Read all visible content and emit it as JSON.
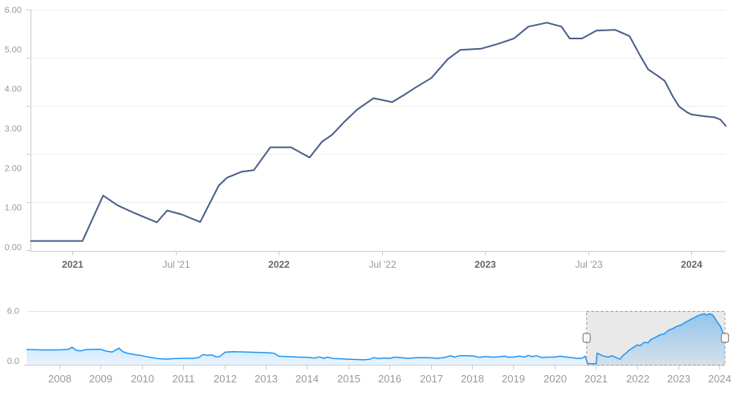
{
  "page": {
    "background": "#ffffff"
  },
  "colors": {
    "main_line": "#4a6088",
    "nav_line": "#2196f3",
    "nav_fill": "#2196f3",
    "gridline": "#ededed",
    "nav_gridline": "#e6e6e6",
    "axis_line": "#cccccc",
    "label_gray": "#999999",
    "label_dark": "#666666",
    "selection_mask": "#000000",
    "selection_mask_opacity": "0.085",
    "selection_border": "#999999",
    "handle_fill": "#f7f7f7",
    "handle_stroke": "#888888"
  },
  "chart_data": [
    {
      "id": "main-chart",
      "type": "line",
      "title": "",
      "xlabel": "",
      "ylabel": "",
      "x_range": [
        2020.798,
        2024.166
      ],
      "y_range": [
        0,
        6
      ],
      "grid": true,
      "legend": false,
      "y_axis_labels": [
        {
          "value": 6,
          "label": "6.00"
        },
        {
          "value": 5,
          "label": "5.00"
        },
        {
          "value": 4,
          "label": "4.00"
        },
        {
          "value": 3,
          "label": "3.00"
        },
        {
          "value": 2,
          "label": "2.00"
        },
        {
          "value": 1,
          "label": "1.00"
        },
        {
          "value": 0,
          "label": "0.00"
        }
      ],
      "x_axis_ticks": [
        {
          "pos": 2021.0,
          "label": "2021",
          "bold": true
        },
        {
          "pos": 2021.5,
          "label": "Jul '21",
          "bold": false
        },
        {
          "pos": 2022.0,
          "label": "2022",
          "bold": true
        },
        {
          "pos": 2022.5,
          "label": "Jul '22",
          "bold": false
        },
        {
          "pos": 2023.0,
          "label": "2023",
          "bold": true
        },
        {
          "pos": 2023.5,
          "label": "Jul '23",
          "bold": false
        },
        {
          "pos": 2024.0,
          "label": "2024",
          "bold": true
        }
      ],
      "points": [
        [
          2020.8,
          0.15
        ],
        [
          2021.05,
          0.15
        ],
        [
          2021.15,
          1.3
        ],
        [
          2021.22,
          1.05
        ],
        [
          2021.3,
          0.86
        ],
        [
          2021.41,
          0.62
        ],
        [
          2021.46,
          0.92
        ],
        [
          2021.53,
          0.82
        ],
        [
          2021.62,
          0.63
        ],
        [
          2021.71,
          1.55
        ],
        [
          2021.75,
          1.75
        ],
        [
          2021.82,
          1.9
        ],
        [
          2021.88,
          1.94
        ],
        [
          2021.96,
          2.52
        ],
        [
          2022.06,
          2.52
        ],
        [
          2022.15,
          2.26
        ],
        [
          2022.21,
          2.66
        ],
        [
          2022.26,
          2.84
        ],
        [
          2022.32,
          3.17
        ],
        [
          2022.38,
          3.47
        ],
        [
          2022.46,
          3.76
        ],
        [
          2022.55,
          3.66
        ],
        [
          2022.61,
          3.85
        ],
        [
          2022.66,
          4.02
        ],
        [
          2022.74,
          4.27
        ],
        [
          2022.82,
          4.75
        ],
        [
          2022.88,
          4.98
        ],
        [
          2022.98,
          5.01
        ],
        [
          2023.06,
          5.13
        ],
        [
          2023.14,
          5.27
        ],
        [
          2023.21,
          5.57
        ],
        [
          2023.3,
          5.67
        ],
        [
          2023.37,
          5.57
        ],
        [
          2023.41,
          5.27
        ],
        [
          2023.47,
          5.27
        ],
        [
          2023.54,
          5.47
        ],
        [
          2023.63,
          5.49
        ],
        [
          2023.7,
          5.33
        ],
        [
          2023.75,
          4.85
        ],
        [
          2023.79,
          4.49
        ],
        [
          2023.83,
          4.35
        ],
        [
          2023.87,
          4.2
        ],
        [
          2023.91,
          3.8
        ],
        [
          2023.94,
          3.55
        ],
        [
          2023.98,
          3.4
        ],
        [
          2024.0,
          3.35
        ],
        [
          2024.04,
          3.32
        ],
        [
          2024.07,
          3.3
        ],
        [
          2024.11,
          3.28
        ],
        [
          2024.14,
          3.22
        ],
        [
          2024.166,
          3.06
        ]
      ]
    },
    {
      "id": "navigator",
      "type": "area",
      "title": "",
      "x_range": [
        2007.2,
        2024.13
      ],
      "y_range": [
        0,
        6
      ],
      "grid": true,
      "legend": false,
      "y_axis_labels": [
        {
          "value": 6,
          "label": "6.0"
        },
        {
          "value": 0,
          "label": "0.0"
        }
      ],
      "x_axis_ticks": [
        {
          "pos": 2008,
          "label": "2008"
        },
        {
          "pos": 2009,
          "label": "2009"
        },
        {
          "pos": 2010,
          "label": "2010"
        },
        {
          "pos": 2011,
          "label": "2011"
        },
        {
          "pos": 2012,
          "label": "2012"
        },
        {
          "pos": 2013,
          "label": "2013"
        },
        {
          "pos": 2014,
          "label": "2014"
        },
        {
          "pos": 2015,
          "label": "2015"
        },
        {
          "pos": 2016,
          "label": "2016"
        },
        {
          "pos": 2017,
          "label": "2017"
        },
        {
          "pos": 2018,
          "label": "2018"
        },
        {
          "pos": 2019,
          "label": "2019"
        },
        {
          "pos": 2020,
          "label": "2020"
        },
        {
          "pos": 2021,
          "label": "2021"
        },
        {
          "pos": 2022,
          "label": "2022"
        },
        {
          "pos": 2023,
          "label": "2023"
        },
        {
          "pos": 2024,
          "label": "2024"
        }
      ],
      "selection": {
        "from": 2020.777,
        "to": 2024.13
      },
      "points": [
        [
          2007.2,
          1.7
        ],
        [
          2007.55,
          1.66
        ],
        [
          2008.0,
          1.66
        ],
        [
          2008.21,
          1.72
        ],
        [
          2008.31,
          1.95
        ],
        [
          2008.41,
          1.6
        ],
        [
          2008.51,
          1.55
        ],
        [
          2008.66,
          1.7
        ],
        [
          2008.86,
          1.72
        ],
        [
          2009.0,
          1.72
        ],
        [
          2009.15,
          1.5
        ],
        [
          2009.28,
          1.42
        ],
        [
          2009.44,
          1.85
        ],
        [
          2009.54,
          1.45
        ],
        [
          2009.67,
          1.25
        ],
        [
          2009.87,
          1.1
        ],
        [
          2010.0,
          1.0
        ],
        [
          2010.2,
          0.82
        ],
        [
          2010.39,
          0.68
        ],
        [
          2010.59,
          0.63
        ],
        [
          2010.78,
          0.68
        ],
        [
          2011.0,
          0.72
        ],
        [
          2011.23,
          0.72
        ],
        [
          2011.37,
          0.8
        ],
        [
          2011.48,
          1.15
        ],
        [
          2011.58,
          1.05
        ],
        [
          2011.7,
          1.1
        ],
        [
          2011.79,
          0.88
        ],
        [
          2011.89,
          0.92
        ],
        [
          2012.01,
          1.4
        ],
        [
          2012.2,
          1.45
        ],
        [
          2012.51,
          1.42
        ],
        [
          2012.79,
          1.38
        ],
        [
          2013.02,
          1.35
        ],
        [
          2013.21,
          1.28
        ],
        [
          2013.31,
          0.95
        ],
        [
          2013.56,
          0.9
        ],
        [
          2013.8,
          0.85
        ],
        [
          2014.01,
          0.82
        ],
        [
          2014.19,
          0.74
        ],
        [
          2014.3,
          0.88
        ],
        [
          2014.4,
          0.72
        ],
        [
          2014.5,
          0.85
        ],
        [
          2014.63,
          0.7
        ],
        [
          2014.83,
          0.66
        ],
        [
          2015.0,
          0.62
        ],
        [
          2015.21,
          0.58
        ],
        [
          2015.37,
          0.55
        ],
        [
          2015.51,
          0.6
        ],
        [
          2015.61,
          0.78
        ],
        [
          2015.74,
          0.7
        ],
        [
          2015.86,
          0.75
        ],
        [
          2016.0,
          0.72
        ],
        [
          2016.13,
          0.85
        ],
        [
          2016.29,
          0.78
        ],
        [
          2016.44,
          0.72
        ],
        [
          2016.64,
          0.78
        ],
        [
          2016.83,
          0.8
        ],
        [
          2016.99,
          0.78
        ],
        [
          2017.17,
          0.72
        ],
        [
          2017.32,
          0.8
        ],
        [
          2017.48,
          1.0
        ],
        [
          2017.57,
          0.85
        ],
        [
          2017.69,
          1.0
        ],
        [
          2017.88,
          1.0
        ],
        [
          2018.04,
          0.98
        ],
        [
          2018.17,
          0.82
        ],
        [
          2018.33,
          0.9
        ],
        [
          2018.49,
          0.85
        ],
        [
          2018.62,
          0.88
        ],
        [
          2018.78,
          0.95
        ],
        [
          2018.89,
          0.85
        ],
        [
          2019.0,
          0.85
        ],
        [
          2019.15,
          0.97
        ],
        [
          2019.27,
          0.85
        ],
        [
          2019.36,
          1.05
        ],
        [
          2019.46,
          0.9
        ],
        [
          2019.56,
          1.0
        ],
        [
          2019.69,
          0.8
        ],
        [
          2019.83,
          0.85
        ],
        [
          2020.0,
          0.85
        ],
        [
          2020.14,
          0.95
        ],
        [
          2020.29,
          0.85
        ],
        [
          2020.43,
          0.78
        ],
        [
          2020.54,
          0.72
        ],
        [
          2020.66,
          0.72
        ],
        [
          2020.74,
          0.95
        ],
        [
          2020.8,
          0.15
        ],
        [
          2020.85,
          0.12
        ],
        [
          2021.01,
          0.12
        ],
        [
          2021.03,
          1.29
        ],
        [
          2021.17,
          1.0
        ],
        [
          2021.3,
          0.85
        ],
        [
          2021.4,
          1.0
        ],
        [
          2021.5,
          0.78
        ],
        [
          2021.59,
          0.62
        ],
        [
          2021.65,
          1.0
        ],
        [
          2021.75,
          1.35
        ],
        [
          2021.8,
          1.6
        ],
        [
          2021.9,
          1.9
        ],
        [
          2022.0,
          2.2
        ],
        [
          2022.08,
          2.15
        ],
        [
          2022.17,
          2.5
        ],
        [
          2022.27,
          2.45
        ],
        [
          2022.33,
          2.8
        ],
        [
          2022.46,
          3.1
        ],
        [
          2022.56,
          3.35
        ],
        [
          2022.66,
          3.45
        ],
        [
          2022.76,
          3.85
        ],
        [
          2022.85,
          4.0
        ],
        [
          2022.97,
          4.3
        ],
        [
          2023.07,
          4.45
        ],
        [
          2023.17,
          4.75
        ],
        [
          2023.26,
          4.95
        ],
        [
          2023.36,
          5.2
        ],
        [
          2023.46,
          5.45
        ],
        [
          2023.55,
          5.6
        ],
        [
          2023.63,
          5.7
        ],
        [
          2023.69,
          5.55
        ],
        [
          2023.75,
          5.7
        ],
        [
          2023.82,
          5.6
        ],
        [
          2023.88,
          5.25
        ],
        [
          2023.94,
          4.8
        ],
        [
          2024.02,
          4.3
        ],
        [
          2024.07,
          3.7
        ],
        [
          2024.13,
          3.2
        ]
      ]
    }
  ]
}
